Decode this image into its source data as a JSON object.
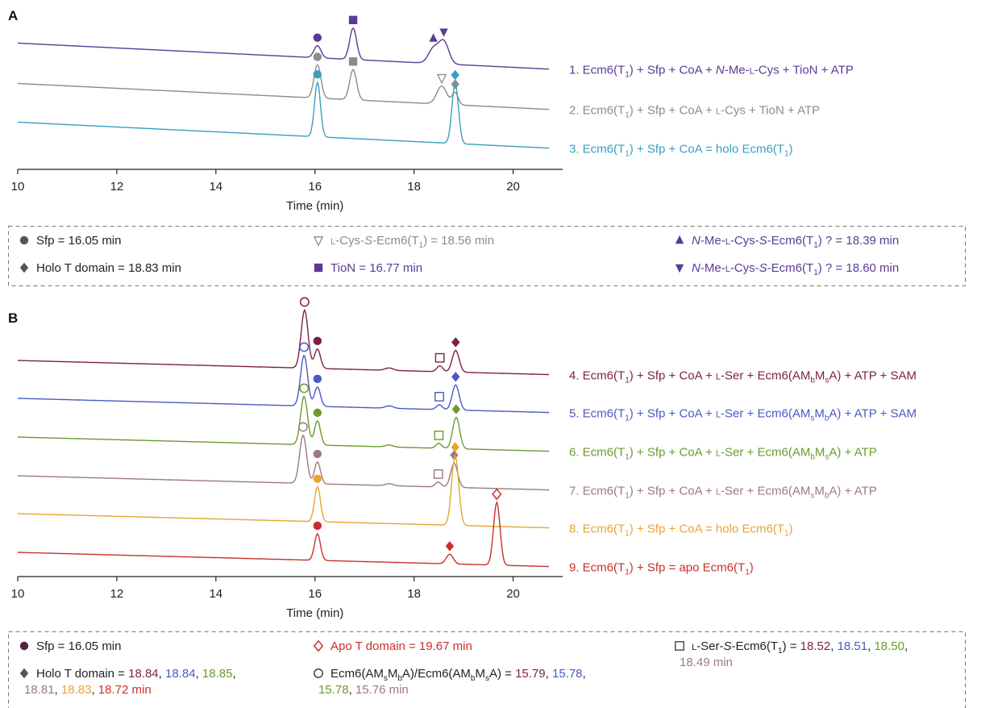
{
  "figure": {
    "panels": [
      {
        "letter": "A",
        "xlabel": "Time (min)",
        "traces": [
          {
            "label": "1. Ecm6(T1) + Sfp + CoA + N-Me-L-Cys + TioN + ATP",
            "color": "#5b3a96"
          },
          {
            "label": "2. Ecm6(T1) + Sfp + CoA + L-Cys + TioN + ATP",
            "color": "#8c8c8c"
          },
          {
            "label": "3. Ecm6(T1) + Sfp + CoA = holo Ecm6(T1)",
            "color": "#3a9fbf"
          }
        ],
        "legend_box": [
          [
            {
              "symbol": "filled-circle",
              "color": "#555555",
              "text": "Sfp = 16.05 min"
            },
            {
              "symbol": "filled-diamond",
              "color": "#555555",
              "text": "Holo T domain = 18.83 min"
            }
          ],
          [
            {
              "symbol": "open-triangle-down",
              "color": "#8c8c8c",
              "text": "L-Cys-S-Ecm6(T1) = 18.56 min"
            },
            {
              "symbol": "filled-square",
              "color": "#5b3a96",
              "text": "TioN = 16.77 min"
            }
          ],
          [
            {
              "symbol": "filled-triangle-up",
              "color": "#5b3a96",
              "text": "N-Me-L-Cys-S-Ecm6(T1) ? = 18.39 min"
            },
            {
              "symbol": "filled-triangle-down",
              "color": "#5b3a96",
              "text": "N-Me-L-Cys-S-Ecm6(T1) ? = 18.60 min"
            }
          ]
        ]
      },
      {
        "letter": "B",
        "xlabel": "Time (min)",
        "traces": [
          {
            "label": "4. Ecm6(T1) + Sfp + CoA + L-Ser + Ecm6(AMbMsA) + ATP + SAM",
            "color": "#7d1f48"
          },
          {
            "label": "5. Ecm6(T1) + Sfp + CoA + L-Ser + Ecm6(AMsMbA) + ATP + SAM",
            "color": "#4a59c4"
          },
          {
            "label": "6. Ecm6(T1) + Sfp + CoA + L-Ser + Ecm6(AMbMsA) + ATP",
            "color": "#6b9a2e"
          },
          {
            "label": "7. Ecm6(T1) + Sfp + CoA + L-Ser + Ecm6(AMsMbA) + ATP",
            "color": "#9a7a80"
          },
          {
            "label": "8. Ecm6(T1) + Sfp + CoA = holo Ecm6(T1)",
            "color": "#e6a631"
          },
          {
            "label": "9. Ecm6(T1) + Sfp = apo Ecm6(T1)",
            "color": "#c8302a"
          }
        ],
        "legend_box": [
          [
            {
              "symbol": "filled-circle",
              "color": "#5a2040",
              "parts": [
                {
                  "text": "Sfp = 16.05 min",
                  "color": "#222222"
                }
              ]
            },
            {
              "symbol": "filled-diamond",
              "color": "#555555",
              "parts": [
                {
                  "text": "Holo T domain = ",
                  "color": "#222222"
                },
                {
                  "text": "18.84",
                  "color": "#7d1f48"
                },
                {
                  "text": ", ",
                  "color": "#222222"
                },
                {
                  "text": "18.84",
                  "color": "#4a59c4"
                },
                {
                  "text": ", ",
                  "color": "#222222"
                },
                {
                  "text": "18.85",
                  "color": "#6b9a2e"
                },
                {
                  "text": ",",
                  "color": "#222222"
                },
                {
                  "text": "18.81",
                  "color": "#9a7a80",
                  "newline": true
                },
                {
                  "text": ", ",
                  "color": "#222222"
                },
                {
                  "text": "18.83",
                  "color": "#e6a631"
                },
                {
                  "text": ", ",
                  "color": "#222222"
                },
                {
                  "text": "18.72 min",
                  "color": "#c8302a"
                }
              ]
            }
          ],
          [
            {
              "symbol": "open-diamond",
              "color": "#c8302a",
              "parts": [
                {
                  "text": "Apo T domain = 19.67 min",
                  "color": "#c8302a"
                }
              ]
            },
            {
              "symbol": "open-circle",
              "color": "#444444",
              "parts": [
                {
                  "text": "Ecm6(AMsMbA)/Ecm6(AMbMsA) = ",
                  "color": "#222222"
                },
                {
                  "text": "15.79",
                  "color": "#7d1f48"
                },
                {
                  "text": ", ",
                  "color": "#222222"
                },
                {
                  "text": "15.78",
                  "color": "#4a59c4"
                },
                {
                  "text": ",",
                  "color": "#222222"
                },
                {
                  "text": "15.78",
                  "color": "#6b9a2e",
                  "newline": true
                },
                {
                  "text": ", ",
                  "color": "#222222"
                },
                {
                  "text": "15.76 min",
                  "color": "#9a7a80"
                }
              ]
            }
          ],
          [
            {
              "symbol": "open-square",
              "color": "#444444",
              "parts": [
                {
                  "text": "L-Ser-S-Ecm6(T1) = ",
                  "color": "#222222"
                },
                {
                  "text": "18.52",
                  "color": "#7d1f48"
                },
                {
                  "text": ", ",
                  "color": "#222222"
                },
                {
                  "text": "18.51",
                  "color": "#4a59c4"
                },
                {
                  "text": ", ",
                  "color": "#222222"
                },
                {
                  "text": "18.50",
                  "color": "#6b9a2e"
                },
                {
                  "text": ",",
                  "color": "#222222"
                },
                {
                  "text": "18.49 min",
                  "color": "#9a7a80",
                  "newline": true
                }
              ]
            }
          ]
        ]
      }
    ]
  },
  "chart_data": [
    {
      "type": "line",
      "panel": "A",
      "xlabel": "Time (min)",
      "xlim": [
        10,
        21
      ],
      "xticks": [
        10,
        12,
        14,
        16,
        18,
        20
      ],
      "y_axis_visible": false,
      "series": [
        {
          "name": "1. Ecm6(T1) + Sfp + CoA + N-Me-L-Cys + TioN + ATP",
          "color": "#5b3a96",
          "baseline_start": 0.62,
          "baseline_end": 0.18,
          "peaks": [
            {
              "x": 16.05,
              "height": 0.2,
              "width": 0.07,
              "marker": "filled-circle"
            },
            {
              "x": 16.77,
              "height": 0.52,
              "width": 0.07,
              "marker": "filled-square"
            },
            {
              "x": 18.39,
              "height": 0.24,
              "width": 0.1,
              "marker": "filled-triangle-up"
            },
            {
              "x": 18.6,
              "height": 0.37,
              "width": 0.1,
              "marker": "filled-triangle-down"
            }
          ]
        },
        {
          "name": "2. Ecm6(T1) + Sfp + CoA + L-Cys + TioN + ATP",
          "color": "#8c8c8c",
          "baseline_start": 0.62,
          "baseline_end": 0.18,
          "peaks": [
            {
              "x": 16.05,
              "height": 0.55,
              "width": 0.07,
              "marker": "filled-circle"
            },
            {
              "x": 16.77,
              "height": 0.5,
              "width": 0.07,
              "marker": "filled-square"
            },
            {
              "x": 18.56,
              "height": 0.3,
              "width": 0.1,
              "marker": "open-triangle-down"
            },
            {
              "x": 18.83,
              "height": 0.2,
              "width": 0.06,
              "marker": "filled-diamond"
            }
          ]
        },
        {
          "name": "3. Ecm6(T1) + Sfp + CoA = holo Ecm6(T1)",
          "color": "#3a9fbf",
          "baseline_start": 0.62,
          "baseline_end": 0.18,
          "peaks": [
            {
              "x": 16.05,
              "height": 0.9,
              "width": 0.06,
              "marker": "filled-circle"
            },
            {
              "x": 18.83,
              "height": 1.0,
              "width": 0.065,
              "marker": "filled-diamond"
            }
          ]
        }
      ]
    },
    {
      "type": "line",
      "panel": "B",
      "xlabel": "Time (min)",
      "xlim": [
        10,
        21
      ],
      "xticks": [
        10,
        12,
        14,
        16,
        18,
        20
      ],
      "y_axis_visible": false,
      "series": [
        {
          "name": "4. Ecm6(T1) + Sfp + CoA + L-Ser + Ecm6(AMbMsA) + ATP + SAM",
          "color": "#7d1f48",
          "baseline_start": 0.3,
          "baseline_end": 0.0,
          "peaks": [
            {
              "x": 15.79,
              "height": 1.2,
              "width": 0.07,
              "marker": "open-circle"
            },
            {
              "x": 16.05,
              "height": 0.4,
              "width": 0.06,
              "marker": "filled-circle"
            },
            {
              "x": 17.5,
              "height": 0.05,
              "width": 0.08,
              "marker": null
            },
            {
              "x": 18.52,
              "height": 0.12,
              "width": 0.06,
              "marker": "open-square"
            },
            {
              "x": 18.84,
              "height": 0.45,
              "width": 0.07,
              "marker": "filled-diamond"
            }
          ]
        },
        {
          "name": "5. Ecm6(T1) + Sfp + CoA + L-Ser + Ecm6(AMsMbA) + ATP + SAM",
          "color": "#4a59c4",
          "baseline_start": 0.3,
          "baseline_end": 0.0,
          "peaks": [
            {
              "x": 15.78,
              "height": 1.05,
              "width": 0.07,
              "marker": "open-circle"
            },
            {
              "x": 16.05,
              "height": 0.4,
              "width": 0.06,
              "marker": "filled-circle"
            },
            {
              "x": 17.5,
              "height": 0.05,
              "width": 0.08,
              "marker": null
            },
            {
              "x": 18.51,
              "height": 0.1,
              "width": 0.06,
              "marker": "open-square"
            },
            {
              "x": 18.84,
              "height": 0.52,
              "width": 0.07,
              "marker": "filled-diamond"
            }
          ]
        },
        {
          "name": "6. Ecm6(T1) + Sfp + CoA + L-Ser + Ecm6(AMbMsA) + ATP",
          "color": "#6b9a2e",
          "baseline_start": 0.3,
          "baseline_end": 0.0,
          "peaks": [
            {
              "x": 15.78,
              "height": 1.0,
              "width": 0.07,
              "marker": "open-circle"
            },
            {
              "x": 16.05,
              "height": 0.5,
              "width": 0.06,
              "marker": "filled-circle"
            },
            {
              "x": 17.5,
              "height": 0.04,
              "width": 0.08,
              "marker": null
            },
            {
              "x": 18.5,
              "height": 0.1,
              "width": 0.06,
              "marker": "open-square"
            },
            {
              "x": 18.85,
              "height": 0.65,
              "width": 0.07,
              "marker": "filled-diamond"
            }
          ]
        },
        {
          "name": "7. Ecm6(T1) + Sfp + CoA + L-Ser + Ecm6(AMsMbA) + ATP",
          "color": "#9a7a80",
          "baseline_start": 0.3,
          "baseline_end": 0.0,
          "peaks": [
            {
              "x": 15.76,
              "height": 1.0,
              "width": 0.07,
              "marker": "open-circle"
            },
            {
              "x": 16.05,
              "height": 0.45,
              "width": 0.06,
              "marker": "filled-circle"
            },
            {
              "x": 17.5,
              "height": 0.04,
              "width": 0.08,
              "marker": null
            },
            {
              "x": 18.49,
              "height": 0.1,
              "width": 0.06,
              "marker": "open-square"
            },
            {
              "x": 18.81,
              "height": 0.5,
              "width": 0.07,
              "marker": "filled-diamond"
            }
          ]
        },
        {
          "name": "8. Ecm6(T1) + Sfp + CoA = holo Ecm6(T1)",
          "color": "#e6a631",
          "baseline_start": 0.3,
          "baseline_end": 0.0,
          "peaks": [
            {
              "x": 16.05,
              "height": 0.72,
              "width": 0.06,
              "marker": "filled-circle"
            },
            {
              "x": 18.83,
              "height": 1.45,
              "width": 0.07,
              "marker": "filled-diamond"
            }
          ]
        },
        {
          "name": "9. Ecm6(T1) + Sfp = apo Ecm6(T1)",
          "color": "#c8302a",
          "baseline_start": 0.3,
          "baseline_end": 0.0,
          "peaks": [
            {
              "x": 16.05,
              "height": 0.55,
              "width": 0.06,
              "marker": "filled-circle"
            },
            {
              "x": 18.72,
              "height": 0.2,
              "width": 0.07,
              "marker": "filled-diamond"
            },
            {
              "x": 19.67,
              "height": 1.3,
              "width": 0.065,
              "marker": "open-diamond"
            }
          ]
        }
      ]
    }
  ]
}
